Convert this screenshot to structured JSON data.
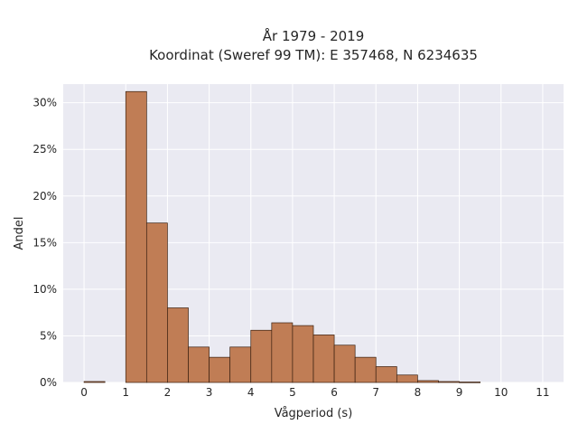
{
  "chart_data": {
    "type": "bar",
    "title_lines": [
      "År 1979 - 2019",
      "Koordinat (Sweref 99 TM): E 357468, N 6234635"
    ],
    "xlabel": "Vågperiod (s)",
    "ylabel": "Andel",
    "xlim": [
      -0.5,
      11.5
    ],
    "ylim": [
      0,
      0.32
    ],
    "xticks": [
      0,
      1,
      2,
      3,
      4,
      5,
      6,
      7,
      8,
      9,
      10,
      11
    ],
    "xtick_labels": [
      "0",
      "1",
      "2",
      "3",
      "4",
      "5",
      "6",
      "7",
      "8",
      "9",
      "10",
      "11"
    ],
    "yticks": [
      0,
      0.05,
      0.1,
      0.15,
      0.2,
      0.25,
      0.3
    ],
    "ytick_labels": [
      "0%",
      "5%",
      "10%",
      "15%",
      "20%",
      "25%",
      "30%"
    ],
    "bin_width": 0.5,
    "bins": [
      {
        "x0": 0.0,
        "value": 0.001
      },
      {
        "x0": 0.5,
        "value": 0.0
      },
      {
        "x0": 1.0,
        "value": 0.312
      },
      {
        "x0": 1.5,
        "value": 0.171
      },
      {
        "x0": 2.0,
        "value": 0.08
      },
      {
        "x0": 2.5,
        "value": 0.038
      },
      {
        "x0": 3.0,
        "value": 0.027
      },
      {
        "x0": 3.5,
        "value": 0.038
      },
      {
        "x0": 4.0,
        "value": 0.056
      },
      {
        "x0": 4.5,
        "value": 0.064
      },
      {
        "x0": 5.0,
        "value": 0.061
      },
      {
        "x0": 5.5,
        "value": 0.051
      },
      {
        "x0": 6.0,
        "value": 0.04
      },
      {
        "x0": 6.5,
        "value": 0.027
      },
      {
        "x0": 7.0,
        "value": 0.017
      },
      {
        "x0": 7.5,
        "value": 0.008
      },
      {
        "x0": 8.0,
        "value": 0.002
      },
      {
        "x0": 8.5,
        "value": 0.001
      },
      {
        "x0": 9.0,
        "value": 0.0005
      }
    ],
    "grid": true,
    "colors": {
      "bar_fill": "#c07d55",
      "bar_edge": "#3a2010",
      "plot_bg": "#eaeaf2",
      "grid": "#ffffff"
    }
  }
}
